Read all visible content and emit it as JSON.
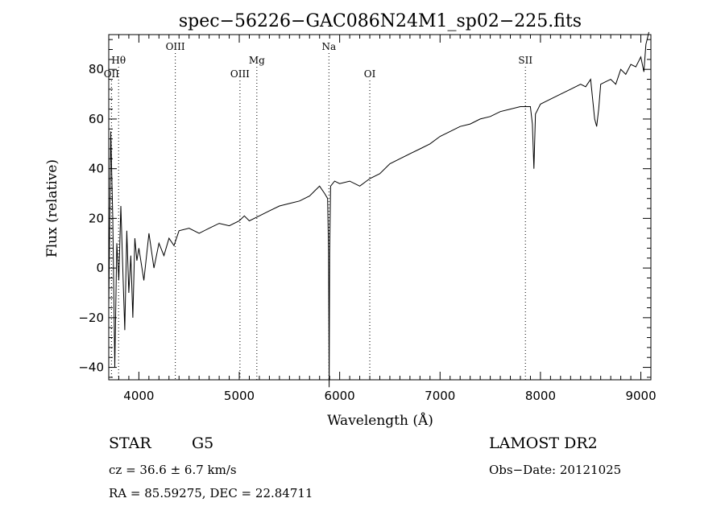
{
  "chart_data": {
    "type": "line",
    "title": "spec−56226−GAC086N24M1_sp02−225.fits",
    "xlabel": "Wavelength (Å)",
    "ylabel": "Flux (relative)",
    "xlim": [
      3700,
      9100
    ],
    "ylim": [
      -45,
      94
    ],
    "x_ticks": [
      4000,
      5000,
      6000,
      7000,
      8000,
      9000
    ],
    "y_ticks": [
      -40,
      -20,
      0,
      20,
      40,
      60,
      80
    ],
    "y_tick_labels": [
      "−40",
      "−20",
      "0",
      "20",
      "40",
      "60",
      "80"
    ],
    "grid": false,
    "series": [
      {
        "x": [
          3700,
          3720,
          3740,
          3760,
          3780,
          3800,
          3820,
          3840,
          3860,
          3880,
          3900,
          3920,
          3940,
          3960,
          3980,
          4000,
          4050,
          4100,
          4150,
          4200,
          4250,
          4300,
          4350,
          4400,
          4500,
          4600,
          4700,
          4800,
          4900,
          5000,
          5050,
          5100,
          5200,
          5300,
          5400,
          5500,
          5600,
          5700,
          5750,
          5800,
          5850,
          5880,
          5890,
          5895,
          5900,
          5910,
          5950,
          6000,
          6100,
          6200,
          6300,
          6400,
          6500,
          6600,
          6700,
          6800,
          6900,
          7000,
          7100,
          7200,
          7300,
          7400,
          7500,
          7600,
          7700,
          7800,
          7850,
          7900,
          7920,
          7935,
          7950,
          8000,
          8100,
          8200,
          8300,
          8400,
          8450,
          8500,
          8540,
          8560,
          8580,
          8600,
          8650,
          8700,
          8750,
          8800,
          8850,
          8900,
          8950,
          9000,
          9030,
          9050,
          9080
        ],
        "y": [
          -15,
          55,
          20,
          -40,
          10,
          -5,
          25,
          0,
          -25,
          15,
          -10,
          5,
          -20,
          12,
          3,
          8,
          -5,
          14,
          0,
          10,
          5,
          12,
          9,
          15,
          16,
          14,
          16,
          18,
          17,
          19,
          21,
          19,
          21,
          23,
          25,
          26,
          27,
          29,
          31,
          33,
          30,
          28,
          6,
          -48,
          6,
          33,
          35,
          34,
          35,
          33,
          36,
          38,
          42,
          44,
          46,
          48,
          50,
          53,
          55,
          57,
          58,
          60,
          61,
          63,
          64,
          65,
          65,
          65,
          58,
          40,
          62,
          66,
          68,
          70,
          72,
          74,
          73,
          76,
          60,
          57,
          64,
          74,
          75,
          76,
          74,
          80,
          78,
          82,
          81,
          85,
          79,
          90,
          95
        ]
      }
    ],
    "annotations": [
      {
        "label": "Hθ",
        "x": 3798,
        "row": "upper"
      },
      {
        "label": "OII",
        "x": 3727,
        "row": "lower"
      },
      {
        "label": "OIII",
        "x": 4363,
        "row": "top"
      },
      {
        "label": "OIII",
        "x": 5007,
        "row": "lower"
      },
      {
        "label": "Mg",
        "x": 5175,
        "row": "upper"
      },
      {
        "label": "Na",
        "x": 5893,
        "row": "top"
      },
      {
        "label": "OI",
        "x": 6300,
        "row": "lower"
      },
      {
        "label": "SII",
        "x": 7850,
        "row": "upper"
      }
    ]
  },
  "info": {
    "object_class": "STAR",
    "subclass": "G5",
    "cz": "cz = 36.6 ± 6.7 km/s",
    "radec": "RA =  85.59275, DEC =  22.84711",
    "survey": "LAMOST DR2",
    "obs_date": "Obs−Date: 20121025"
  }
}
